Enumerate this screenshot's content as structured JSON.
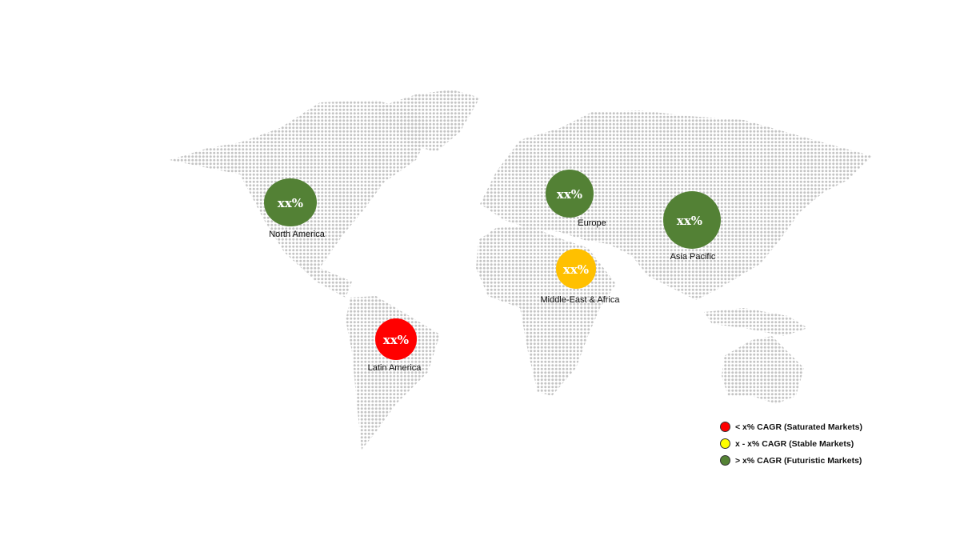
{
  "regions": [
    {
      "name": "North America",
      "value": "xx%",
      "color": "#538135"
    },
    {
      "name": "Europe",
      "value": "xx%",
      "color": "#538135"
    },
    {
      "name": "Asia Pacific",
      "value": "xx%",
      "color": "#538135"
    },
    {
      "name": "Middle-East & Africa",
      "value": "xx%",
      "color": "#FFC000"
    },
    {
      "name": "Latin America",
      "value": "xx%",
      "color": "#FF0000"
    }
  ],
  "legend": [
    {
      "label": "< x% CAGR (Saturated Markets)",
      "color": "#FF0000"
    },
    {
      "label": "x - x% CAGR (Stable Markets)",
      "color": "#FFFF00"
    },
    {
      "label": "> x% CAGR (Futuristic Markets)",
      "color": "#548235"
    }
  ],
  "map_color": "#c8c8c8"
}
